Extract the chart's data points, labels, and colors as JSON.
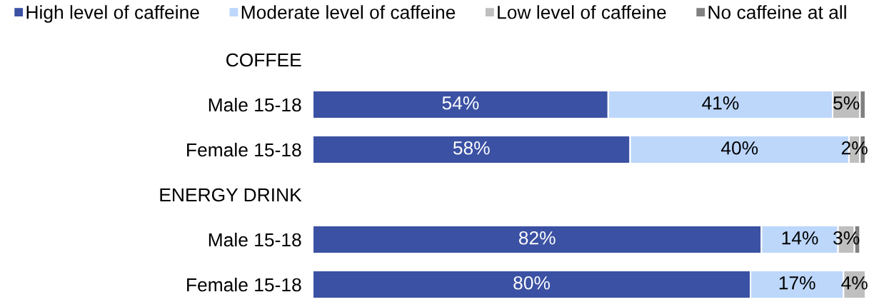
{
  "chart_data": {
    "type": "bar",
    "orientation": "horizontal",
    "stacked": true,
    "legend": "top",
    "grid": false,
    "tick_labels": "y",
    "categories": [
      "COFFEE",
      "Male 15-18",
      "Female 15-18",
      "ENERGY DRINK",
      "Male 15-18",
      "Female 15-18"
    ],
    "series": [
      {
        "name": "High level of caffeine",
        "color": "#3b51a3",
        "values": [
          null,
          54,
          58,
          null,
          82,
          80
        ],
        "value_labels": [
          null,
          "54%",
          "58%",
          null,
          "82%",
          "80%"
        ]
      },
      {
        "name": "Moderate level of caffeine",
        "color": "#bdd7fb",
        "values": [
          null,
          41,
          40,
          null,
          14,
          17
        ],
        "value_labels": [
          null,
          "41%",
          "40%",
          null,
          "14%",
          "17%"
        ]
      },
      {
        "name": "Low level of caffeine",
        "color": "#bfbfbf",
        "values": [
          null,
          5,
          2,
          null,
          3,
          4
        ],
        "value_labels": [
          null,
          "5%",
          "2%",
          null,
          "3%",
          "4%"
        ]
      },
      {
        "name": "No caffeine at all",
        "color": "#808080",
        "values": [
          null,
          1,
          1,
          null,
          1,
          null
        ]
      }
    ]
  }
}
